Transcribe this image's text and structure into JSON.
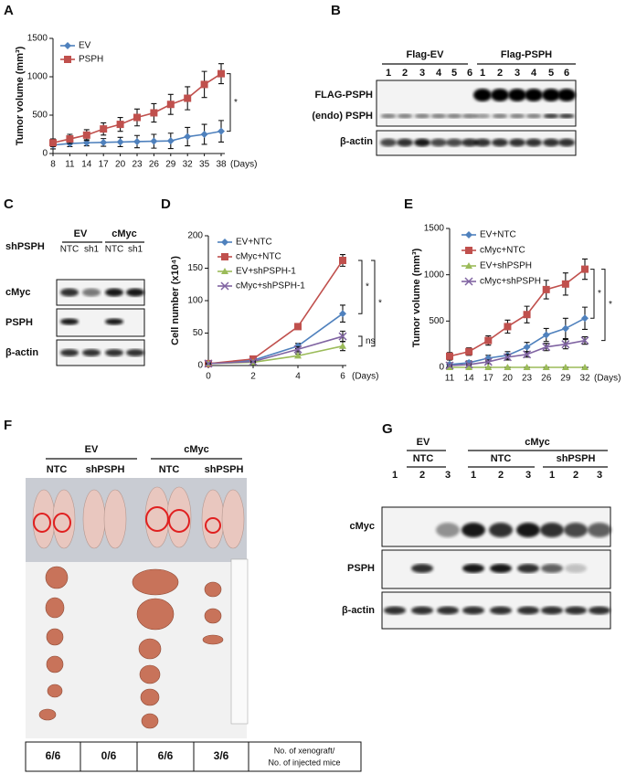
{
  "figure": {
    "panels": [
      "A",
      "B",
      "C",
      "D",
      "E",
      "F",
      "G"
    ]
  },
  "chart_data": [
    {
      "type": "line",
      "y_label": "Tumor volume (mm³)",
      "x_unit": "(Days)",
      "x": [
        8,
        11,
        14,
        17,
        20,
        23,
        26,
        29,
        32,
        35,
        38
      ],
      "xlim": [
        8,
        38
      ],
      "xticks": [
        8,
        11,
        14,
        17,
        20,
        23,
        26,
        29,
        32,
        35,
        38
      ],
      "ylim": [
        0,
        1500
      ],
      "yticks": [
        0,
        500,
        1000,
        1500
      ],
      "legend": "upper left",
      "series": [
        {
          "name": "EV",
          "color": "#4f81bd",
          "marker": "diamond",
          "values": [
            110,
            130,
            140,
            145,
            150,
            155,
            160,
            165,
            220,
            250,
            290
          ],
          "errors": [
            50,
            40,
            40,
            50,
            60,
            80,
            90,
            100,
            120,
            130,
            140
          ]
        },
        {
          "name": "PSPH",
          "color": "#c0504d",
          "marker": "square",
          "values": [
            140,
            190,
            240,
            320,
            380,
            470,
            530,
            640,
            720,
            900,
            1040
          ],
          "errors": [
            50,
            60,
            70,
            80,
            90,
            110,
            120,
            130,
            150,
            170,
            130
          ]
        }
      ],
      "annotations": [
        "*"
      ]
    },
    {
      "type": "line",
      "y_label": "Cell number (x10⁴)",
      "x_unit": "(Days)",
      "x": [
        0,
        2,
        4,
        6
      ],
      "xlim": [
        0,
        6
      ],
      "xticks": [
        0,
        2,
        4,
        6
      ],
      "ylim": [
        0,
        200
      ],
      "yticks": [
        0,
        50,
        100,
        150,
        200
      ],
      "legend": "upper left",
      "series": [
        {
          "name": "EV+NTC",
          "color": "#4f81bd",
          "marker": "diamond",
          "values": [
            3,
            8,
            30,
            80
          ],
          "errors": [
            1,
            2,
            4,
            13
          ]
        },
        {
          "name": "cMyc+NTC",
          "color": "#c0504d",
          "marker": "square",
          "values": [
            3,
            10,
            60,
            162
          ],
          "errors": [
            1,
            2,
            3,
            9
          ]
        },
        {
          "name": "EV+shPSPH-1",
          "color": "#9bbb59",
          "marker": "triangle",
          "values": [
            3,
            5,
            15,
            30
          ],
          "errors": [
            1,
            1,
            3,
            7
          ]
        },
        {
          "name": "cMyc+shPSPH-1",
          "color": "#8064a2",
          "marker": "x",
          "values": [
            3,
            6,
            25,
            45
          ],
          "errors": [
            1,
            1,
            4,
            8
          ]
        }
      ],
      "annotations": [
        "*",
        "*",
        "ns"
      ]
    },
    {
      "type": "line",
      "y_label": "Tumor volume (mm³)",
      "x_unit": "(Days)",
      "x": [
        11,
        14,
        17,
        20,
        23,
        26,
        29,
        32
      ],
      "xlim": [
        11,
        32
      ],
      "xticks": [
        11,
        14,
        17,
        20,
        23,
        26,
        29,
        32
      ],
      "ylim": [
        0,
        1500
      ],
      "yticks": [
        0,
        500,
        1000,
        1500
      ],
      "legend": "upper left",
      "series": [
        {
          "name": "EV+NTC",
          "color": "#4f81bd",
          "marker": "diamond",
          "values": [
            30,
            50,
            100,
            130,
            220,
            350,
            420,
            530
          ],
          "errors": [
            20,
            20,
            30,
            40,
            50,
            70,
            110,
            120
          ]
        },
        {
          "name": "cMyc+NTC",
          "color": "#c0504d",
          "marker": "square",
          "values": [
            120,
            170,
            290,
            440,
            570,
            840,
            900,
            1060
          ],
          "errors": [
            40,
            40,
            50,
            70,
            90,
            100,
            120,
            110
          ]
        },
        {
          "name": "EV+shPSPH",
          "color": "#9bbb59",
          "marker": "triangle",
          "values": [
            0,
            0,
            0,
            0,
            0,
            0,
            0,
            0
          ],
          "errors": [
            0,
            0,
            0,
            0,
            0,
            0,
            0,
            0
          ]
        },
        {
          "name": "cMyc+shPSPH",
          "color": "#8064a2",
          "marker": "x",
          "values": [
            20,
            30,
            60,
            110,
            140,
            220,
            250,
            290
          ],
          "errors": [
            10,
            10,
            20,
            30,
            30,
            40,
            50,
            40
          ]
        }
      ],
      "annotations": [
        "*",
        "*"
      ]
    }
  ],
  "panel_b": {
    "groups": [
      {
        "name": "Flag-EV",
        "lanes": [
          "1",
          "2",
          "3",
          "4",
          "5",
          "6"
        ]
      },
      {
        "name": "Flag-PSPH",
        "lanes": [
          "1",
          "2",
          "3",
          "4",
          "5",
          "6"
        ]
      }
    ],
    "rows": [
      "FLAG-PSPH",
      "(endo) PSPH",
      "β-actin"
    ]
  },
  "panel_c": {
    "row_label": "shPSPH",
    "groups": [
      {
        "name": "EV",
        "lanes": [
          "NTC",
          "sh1"
        ]
      },
      {
        "name": "cMyc",
        "lanes": [
          "NTC",
          "sh1"
        ]
      }
    ],
    "rows": [
      "cMyc",
      "PSPH",
      "β-actin"
    ]
  },
  "panel_f": {
    "groups": [
      {
        "name": "EV",
        "lanes": [
          "NTC",
          "shPSPH"
        ]
      },
      {
        "name": "cMyc",
        "lanes": [
          "NTC",
          "shPSPH"
        ]
      }
    ],
    "table": {
      "cells": [
        "6/6",
        "0/6",
        "6/6",
        "3/6"
      ],
      "note": [
        "No. of xenograft/",
        "No. of injected mice"
      ]
    }
  },
  "panel_g": {
    "groups": [
      {
        "name": "EV",
        "subgroups": [
          {
            "name": "NTC",
            "lanes": [
              "1",
              "2",
              "3"
            ]
          }
        ]
      },
      {
        "name": "cMyc",
        "subgroups": [
          {
            "name": "NTC",
            "lanes": [
              "1",
              "2",
              "3"
            ]
          },
          {
            "name": "shPSPH",
            "lanes": [
              "1",
              "2",
              "3"
            ]
          }
        ]
      }
    ],
    "rows": [
      "cMyc",
      "PSPH",
      "β-actin"
    ]
  }
}
